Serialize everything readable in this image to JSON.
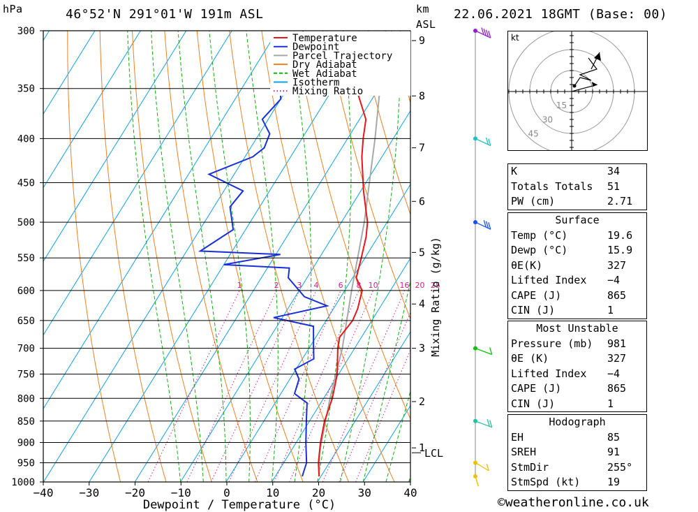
{
  "header": {
    "location": "46°52'N  291°01'W  191m  ASL",
    "datetime": "22.06.2021  18GMT  (Base: 00)",
    "left_unit": "hPa",
    "km_label": "km",
    "asl_label": "ASL"
  },
  "chart_data": {
    "type": "skew-t log-p",
    "xlabel": "Dewpoint / Temperature (°C)",
    "mixing_ratio_label": "Mixing Ratio (g/kg)",
    "temperature_ticks": [
      -40,
      -30,
      -20,
      -10,
      0,
      10,
      20,
      30,
      40
    ],
    "temperature_tick_labels": [
      "−40",
      "−30",
      "−20",
      "−10",
      "0",
      "10",
      "20",
      "30",
      "40"
    ],
    "pressure_levels_hpa": [
      300,
      350,
      400,
      450,
      500,
      550,
      600,
      650,
      700,
      750,
      800,
      850,
      900,
      950,
      1000
    ],
    "km_ticks": [
      {
        "km": 1,
        "p": 913
      },
      {
        "km": 2,
        "p": 807
      },
      {
        "km": 3,
        "p": 700
      },
      {
        "km": 4,
        "p": 622
      },
      {
        "km": 5,
        "p": 542
      },
      {
        "km": 6,
        "p": 473
      },
      {
        "km": 7,
        "p": 410
      },
      {
        "km": 8,
        "p": 357
      },
      {
        "km": 9,
        "p": 308
      }
    ],
    "lcl": {
      "label": "LCL",
      "p": 925
    },
    "mixing_ratio_labels": [
      "1",
      "2",
      "3",
      "4",
      "6",
      "8",
      "10",
      "16",
      "20",
      "25"
    ],
    "mixing_ratio_values": [
      1,
      2,
      3,
      4,
      6,
      8,
      10,
      16,
      20,
      25
    ],
    "legend": [
      "Temperature",
      "Dewpoint",
      "Parcel Trajectory",
      "Dry Adiabat",
      "Wet Adiabat",
      "Isotherm",
      "Mixing Ratio"
    ],
    "colors": {
      "temperature": "#e8161b",
      "dewpoint": "#1830d8",
      "parcel": "#a8a8a8",
      "dry_adiabat": "#f08020",
      "wet_adiabat": "#10b010",
      "isotherm": "#10a0e8",
      "mixing_ratio": "#d0208c"
    },
    "temperature_profile": [
      {
        "p": 985,
        "t": 19.6
      },
      {
        "p": 950,
        "t": 17.6
      },
      {
        "p": 900,
        "t": 15.3
      },
      {
        "p": 850,
        "t": 13.3
      },
      {
        "p": 800,
        "t": 11.9
      },
      {
        "p": 750,
        "t": 9.7
      },
      {
        "p": 700,
        "t": 6.3
      },
      {
        "p": 680,
        "t": 5.2
      },
      {
        "p": 650,
        "t": 5.8
      },
      {
        "p": 630,
        "t": 5.3
      },
      {
        "p": 600,
        "t": 3.8
      },
      {
        "p": 580,
        "t": 0.8
      },
      {
        "p": 550,
        "t": -0.8
      },
      {
        "p": 520,
        "t": -2.6
      },
      {
        "p": 500,
        "t": -4.3
      },
      {
        "p": 460,
        "t": -9.4
      },
      {
        "p": 420,
        "t": -14.4
      },
      {
        "p": 400,
        "t": -16.6
      },
      {
        "p": 380,
        "t": -18.6
      },
      {
        "p": 350,
        "t": -24.9
      },
      {
        "p": 320,
        "t": -30.9
      },
      {
        "p": 310,
        "t": -33.4
      },
      {
        "p": 302,
        "t": -33.4
      }
    ],
    "dewpoint_profile": [
      {
        "p": 985,
        "t": 15.9
      },
      {
        "p": 950,
        "t": 15.0
      },
      {
        "p": 900,
        "t": 12.1
      },
      {
        "p": 850,
        "t": 9.3
      },
      {
        "p": 810,
        "t": 7.0
      },
      {
        "p": 790,
        "t": 3.0
      },
      {
        "p": 760,
        "t": 2.0
      },
      {
        "p": 740,
        "t": -0.3
      },
      {
        "p": 720,
        "t": 2.5
      },
      {
        "p": 700,
        "t": 1.0
      },
      {
        "p": 660,
        "t": -2.0
      },
      {
        "p": 645,
        "t": -11.9
      },
      {
        "p": 625,
        "t": -1.8
      },
      {
        "p": 610,
        "t": -8.0
      },
      {
        "p": 580,
        "t": -14.1
      },
      {
        "p": 565,
        "t": -15.2
      },
      {
        "p": 560,
        "t": -30.0
      },
      {
        "p": 545,
        "t": -19.0
      },
      {
        "p": 540,
        "t": -37.0
      },
      {
        "p": 510,
        "t": -32.7
      },
      {
        "p": 480,
        "t": -36.5
      },
      {
        "p": 460,
        "t": -35.8
      },
      {
        "p": 440,
        "t": -45.5
      },
      {
        "p": 420,
        "t": -38.3
      },
      {
        "p": 410,
        "t": -37.0
      },
      {
        "p": 395,
        "t": -37.7
      },
      {
        "p": 380,
        "t": -41.3
      },
      {
        "p": 360,
        "t": -40.0
      },
      {
        "p": 345,
        "t": -42.4
      },
      {
        "p": 330,
        "t": -39.6
      },
      {
        "p": 300,
        "t": -44.4
      }
    ],
    "parcel_profile": [
      {
        "p": 985,
        "t": 19.6
      },
      {
        "p": 925,
        "t": 16.5
      },
      {
        "p": 850,
        "t": 13.5
      },
      {
        "p": 800,
        "t": 11.4
      },
      {
        "p": 700,
        "t": 7.3
      },
      {
        "p": 600,
        "t": 1.5
      },
      {
        "p": 500,
        "t": -5.0
      },
      {
        "p": 400,
        "t": -14.0
      },
      {
        "p": 300,
        "t": -26.3
      }
    ],
    "wind_barbs": [
      {
        "p": 985,
        "dir": 190,
        "spd": 5
      },
      {
        "p": 950,
        "dir": 230,
        "spd": 10
      },
      {
        "p": 850,
        "dir": 250,
        "spd": 15
      },
      {
        "p": 700,
        "dir": 250,
        "spd": 10
      },
      {
        "p": 500,
        "dir": 240,
        "spd": 30
      },
      {
        "p": 400,
        "dir": 240,
        "spd": 20
      },
      {
        "p": 300,
        "dir": 240,
        "spd": 40
      }
    ]
  },
  "hodograph": {
    "unit": "kt",
    "ring_labels": [
      "15",
      "30",
      "45"
    ],
    "trace_kt": [
      {
        "u": 2,
        "v": 4
      },
      {
        "u": 6,
        "v": 10
      },
      {
        "u": 14,
        "v": 8
      },
      {
        "u": 6,
        "v": 12
      },
      {
        "u": 18,
        "v": 16
      },
      {
        "u": 12,
        "v": 24
      }
    ],
    "storm_motion": {
      "dir_deg": 255,
      "spd_kt": 19
    }
  },
  "indices": {
    "top": [
      {
        "label": "K",
        "value": "34"
      },
      {
        "label": "Totals Totals",
        "value": "51"
      },
      {
        "label": "PW (cm)",
        "value": "2.71"
      }
    ],
    "surface_title": "Surface",
    "surface": [
      {
        "label": "Temp (°C)",
        "value": "19.6"
      },
      {
        "label": "Dewp (°C)",
        "value": "15.9"
      },
      {
        "label": "θE(K)",
        "value": "327"
      },
      {
        "label": "Lifted Index",
        "value": "−4"
      },
      {
        "label": "CAPE (J)",
        "value": "865"
      },
      {
        "label": "CIN (J)",
        "value": "1"
      }
    ],
    "mu_title": "Most Unstable",
    "mu": [
      {
        "label": "Pressure (mb)",
        "value": "981"
      },
      {
        "label": "θE (K)",
        "value": "327"
      },
      {
        "label": "Lifted Index",
        "value": "−4"
      },
      {
        "label": "CAPE (J)",
        "value": "865"
      },
      {
        "label": "CIN (J)",
        "value": "1"
      }
    ],
    "hodo_title": "Hodograph",
    "hodo": [
      {
        "label": "EH",
        "value": "85"
      },
      {
        "label": "SREH",
        "value": "91"
      },
      {
        "label": "StmDir",
        "value": "255°"
      },
      {
        "label": "StmSpd (kt)",
        "value": "19"
      }
    ]
  },
  "credit": "©weatheronline.co.uk"
}
